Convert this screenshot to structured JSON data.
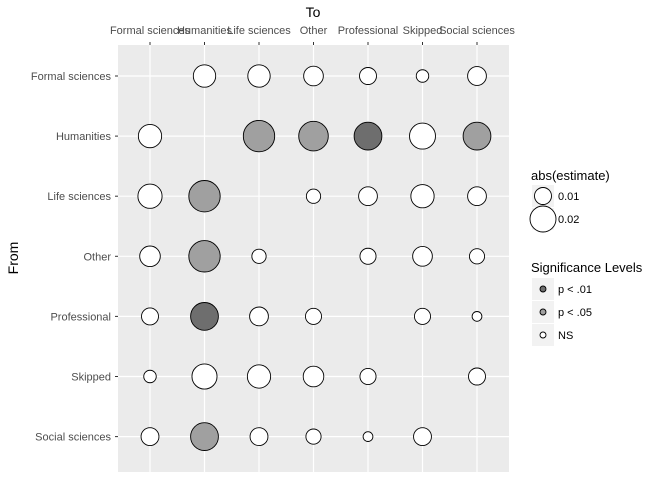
{
  "chart_data": {
    "type": "scatter",
    "title": "",
    "xlabel": "To",
    "ylabel": "From",
    "grid": true,
    "legend_placement": "right",
    "x_categories": [
      "Formal sciences",
      "Humanities",
      "Life sciences",
      "Other",
      "Professional",
      "Skipped",
      "Social sciences"
    ],
    "y_categories": [
      "Formal sciences",
      "Humanities",
      "Life sciences",
      "Other",
      "Professional",
      "Skipped",
      "Social sciences"
    ],
    "size_legend": {
      "title": "abs(estimate)",
      "entries": [
        {
          "label": "0.01",
          "value": 0.01
        },
        {
          "label": "0.02",
          "value": 0.02
        }
      ]
    },
    "fill_legend": {
      "title": "Significance Levels",
      "entries": [
        {
          "label": "p < .01",
          "color": "#6e6e6e"
        },
        {
          "label": "p < .05",
          "color": "#a0a0a0"
        },
        {
          "label": "NS",
          "color": "#ffffff"
        }
      ]
    },
    "points": [
      {
        "from": "Formal sciences",
        "to": "Humanities",
        "abs_estimate": 0.016,
        "significance": "NS"
      },
      {
        "from": "Formal sciences",
        "to": "Life sciences",
        "abs_estimate": 0.016,
        "significance": "NS"
      },
      {
        "from": "Formal sciences",
        "to": "Other",
        "abs_estimate": 0.013,
        "significance": "NS"
      },
      {
        "from": "Formal sciences",
        "to": "Professional",
        "abs_estimate": 0.01,
        "significance": "NS"
      },
      {
        "from": "Formal sciences",
        "to": "Skipped",
        "abs_estimate": 0.005,
        "significance": "NS"
      },
      {
        "from": "Formal sciences",
        "to": "Social sciences",
        "abs_estimate": 0.012,
        "significance": "NS"
      },
      {
        "from": "Humanities",
        "to": "Formal sciences",
        "abs_estimate": 0.017,
        "significance": "NS"
      },
      {
        "from": "Humanities",
        "to": "Life sciences",
        "abs_estimate": 0.026,
        "significance": "p < .05"
      },
      {
        "from": "Humanities",
        "to": "Other",
        "abs_estimate": 0.024,
        "significance": "p < .05"
      },
      {
        "from": "Humanities",
        "to": "Professional",
        "abs_estimate": 0.022,
        "significance": "p < .01"
      },
      {
        "from": "Humanities",
        "to": "Skipped",
        "abs_estimate": 0.02,
        "significance": "NS"
      },
      {
        "from": "Humanities",
        "to": "Social sciences",
        "abs_estimate": 0.022,
        "significance": "p < .05"
      },
      {
        "from": "Life sciences",
        "to": "Formal sciences",
        "abs_estimate": 0.018,
        "significance": "NS"
      },
      {
        "from": "Life sciences",
        "to": "Humanities",
        "abs_estimate": 0.026,
        "significance": "p < .05"
      },
      {
        "from": "Life sciences",
        "to": "Other",
        "abs_estimate": 0.007,
        "significance": "NS"
      },
      {
        "from": "Life sciences",
        "to": "Professional",
        "abs_estimate": 0.012,
        "significance": "NS"
      },
      {
        "from": "Life sciences",
        "to": "Skipped",
        "abs_estimate": 0.017,
        "significance": "NS"
      },
      {
        "from": "Life sciences",
        "to": "Social sciences",
        "abs_estimate": 0.012,
        "significance": "NS"
      },
      {
        "from": "Other",
        "to": "Formal sciences",
        "abs_estimate": 0.014,
        "significance": "NS"
      },
      {
        "from": "Other",
        "to": "Humanities",
        "abs_estimate": 0.026,
        "significance": "p < .05"
      },
      {
        "from": "Other",
        "to": "Life sciences",
        "abs_estimate": 0.007,
        "significance": "NS"
      },
      {
        "from": "Other",
        "to": "Professional",
        "abs_estimate": 0.009,
        "significance": "NS"
      },
      {
        "from": "Other",
        "to": "Skipped",
        "abs_estimate": 0.013,
        "significance": "NS"
      },
      {
        "from": "Other",
        "to": "Social sciences",
        "abs_estimate": 0.008,
        "significance": "NS"
      },
      {
        "from": "Professional",
        "to": "Formal sciences",
        "abs_estimate": 0.01,
        "significance": "NS"
      },
      {
        "from": "Professional",
        "to": "Humanities",
        "abs_estimate": 0.022,
        "significance": "p < .01"
      },
      {
        "from": "Professional",
        "to": "Life sciences",
        "abs_estimate": 0.012,
        "significance": "NS"
      },
      {
        "from": "Professional",
        "to": "Other",
        "abs_estimate": 0.009,
        "significance": "NS"
      },
      {
        "from": "Professional",
        "to": "Skipped",
        "abs_estimate": 0.009,
        "significance": "NS"
      },
      {
        "from": "Professional",
        "to": "Social sciences",
        "abs_estimate": 0.002,
        "significance": "NS"
      },
      {
        "from": "Skipped",
        "to": "Formal sciences",
        "abs_estimate": 0.005,
        "significance": "NS"
      },
      {
        "from": "Skipped",
        "to": "Humanities",
        "abs_estimate": 0.019,
        "significance": "NS"
      },
      {
        "from": "Skipped",
        "to": "Life sciences",
        "abs_estimate": 0.017,
        "significance": "NS"
      },
      {
        "from": "Skipped",
        "to": "Other",
        "abs_estimate": 0.014,
        "significance": "NS"
      },
      {
        "from": "Skipped",
        "to": "Professional",
        "abs_estimate": 0.009,
        "significance": "NS"
      },
      {
        "from": "Skipped",
        "to": "Social sciences",
        "abs_estimate": 0.01,
        "significance": "NS"
      },
      {
        "from": "Social sciences",
        "to": "Formal sciences",
        "abs_estimate": 0.011,
        "significance": "NS"
      },
      {
        "from": "Social sciences",
        "to": "Humanities",
        "abs_estimate": 0.022,
        "significance": "p < .05"
      },
      {
        "from": "Social sciences",
        "to": "Life sciences",
        "abs_estimate": 0.011,
        "significance": "NS"
      },
      {
        "from": "Social sciences",
        "to": "Other",
        "abs_estimate": 0.008,
        "significance": "NS"
      },
      {
        "from": "Social sciences",
        "to": "Professional",
        "abs_estimate": 0.002,
        "significance": "NS"
      },
      {
        "from": "Social sciences",
        "to": "Skipped",
        "abs_estimate": 0.011,
        "significance": "NS"
      }
    ]
  }
}
